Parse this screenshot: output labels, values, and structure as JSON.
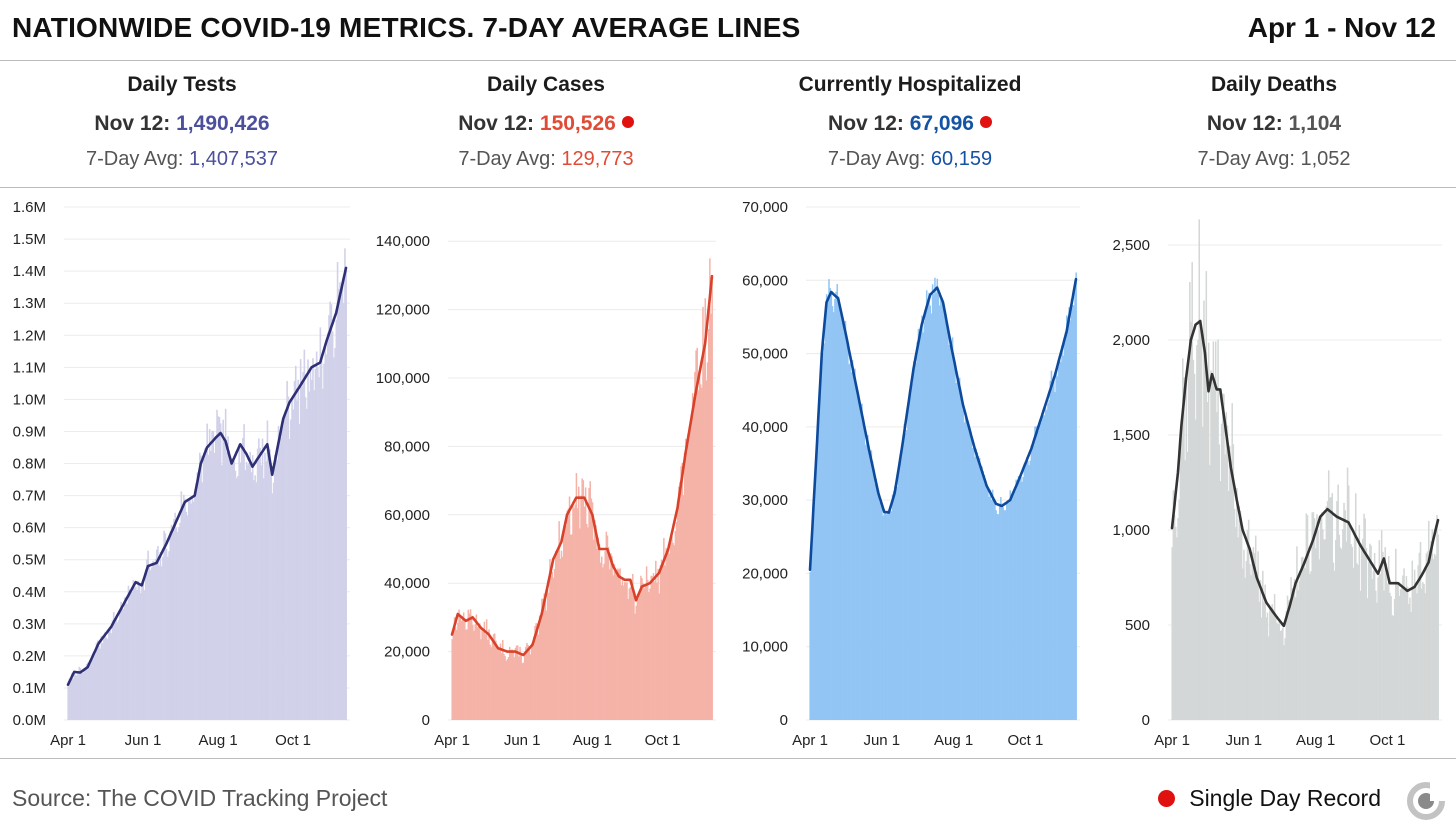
{
  "header": {
    "title": "NATIONWIDE COVID-19 METRICS. 7-DAY AVERAGE LINES",
    "date_range": "Apr 1 - Nov 12"
  },
  "colors": {
    "tests": "#2e2f74",
    "cases": "#d8412a",
    "hosp": "#0d4a9c",
    "deaths": "#333333",
    "record": "#e0110f"
  },
  "stats": [
    {
      "name": "Daily Tests",
      "date": "Nov 12:",
      "latest": "1,490,426",
      "avg_label": "7-Day Avg:",
      "avg": "1,407,537",
      "value_color": "#4b4f9c",
      "record": false
    },
    {
      "name": "Daily Cases",
      "date": "Nov 12:",
      "latest": "150,526",
      "avg_label": "7-Day Avg:",
      "avg": "129,773",
      "value_color": "#e04b36",
      "record": true
    },
    {
      "name": "Currently Hospitalized",
      "date": "Nov 12:",
      "latest": "67,096",
      "avg_label": "7-Day Avg:",
      "avg": "60,159",
      "value_color": "#1452a4",
      "record": true
    },
    {
      "name": "Daily Deaths",
      "date": "Nov 12:",
      "latest": "1,104",
      "avg_label": "7-Day Avg:",
      "avg": "1,052",
      "value_color": "#555555",
      "record": false
    }
  ],
  "chart_data": [
    {
      "type": "bar",
      "title": "Daily Tests",
      "x_start": "Apr 1",
      "x_end": "Nov 12",
      "days": 226,
      "xticks": [
        {
          "day": 0,
          "label": "Apr 1"
        },
        {
          "day": 61,
          "label": "Jun 1"
        },
        {
          "day": 122,
          "label": "Aug 1"
        },
        {
          "day": 183,
          "label": "Oct 1"
        }
      ],
      "ylim": [
        0,
        1600000
      ],
      "yticks": [
        {
          "v": 0,
          "label": "0.0M"
        },
        {
          "v": 100000,
          "label": "0.1M"
        },
        {
          "v": 200000,
          "label": "0.2M"
        },
        {
          "v": 300000,
          "label": "0.3M"
        },
        {
          "v": 400000,
          "label": "0.4M"
        },
        {
          "v": 500000,
          "label": "0.5M"
        },
        {
          "v": 600000,
          "label": "0.6M"
        },
        {
          "v": 700000,
          "label": "0.7M"
        },
        {
          "v": 800000,
          "label": "0.8M"
        },
        {
          "v": 900000,
          "label": "0.9M"
        },
        {
          "v": 1000000,
          "label": "1.0M"
        },
        {
          "v": 1100000,
          "label": "1.1M"
        },
        {
          "v": 1200000,
          "label": "1.2M"
        },
        {
          "v": 1300000,
          "label": "1.3M"
        },
        {
          "v": 1400000,
          "label": "1.4M"
        },
        {
          "v": 1500000,
          "label": "1.5M"
        },
        {
          "v": 1600000,
          "label": "1.6M"
        }
      ],
      "avg_points": [
        [
          0,
          110000
        ],
        [
          5,
          150000
        ],
        [
          10,
          148000
        ],
        [
          16,
          165000
        ],
        [
          25,
          240000
        ],
        [
          35,
          290000
        ],
        [
          45,
          360000
        ],
        [
          55,
          430000
        ],
        [
          60,
          420000
        ],
        [
          65,
          480000
        ],
        [
          72,
          490000
        ],
        [
          80,
          550000
        ],
        [
          95,
          680000
        ],
        [
          103,
          700000
        ],
        [
          108,
          800000
        ],
        [
          113,
          850000
        ],
        [
          120,
          880000
        ],
        [
          124,
          895000
        ],
        [
          128,
          870000
        ],
        [
          133,
          800000
        ],
        [
          140,
          860000
        ],
        [
          145,
          830000
        ],
        [
          150,
          790000
        ],
        [
          155,
          820000
        ],
        [
          162,
          860000
        ],
        [
          166,
          765000
        ],
        [
          175,
          940000
        ],
        [
          180,
          990000
        ],
        [
          190,
          1050000
        ],
        [
          198,
          1100000
        ],
        [
          205,
          1115000
        ],
        [
          210,
          1180000
        ],
        [
          218,
          1270000
        ],
        [
          226,
          1410000
        ]
      ],
      "noise_seed": 7,
      "noise_amp": 0.1,
      "bar_color": "#d1d1ea",
      "line_color": "#2e2f74"
    },
    {
      "type": "bar",
      "title": "Daily Cases",
      "x_start": "Apr 1",
      "x_end": "Nov 12",
      "days": 226,
      "xticks": [
        {
          "day": 0,
          "label": "Apr 1"
        },
        {
          "day": 61,
          "label": "Jun 1"
        },
        {
          "day": 122,
          "label": "Aug 1"
        },
        {
          "day": 183,
          "label": "Oct 1"
        }
      ],
      "ylim": [
        0,
        150000
      ],
      "yticks": [
        {
          "v": 0,
          "label": "0"
        },
        {
          "v": 20000,
          "label": "20,000"
        },
        {
          "v": 40000,
          "label": "40,000"
        },
        {
          "v": 60000,
          "label": "60,000"
        },
        {
          "v": 80000,
          "label": "80,000"
        },
        {
          "v": 100000,
          "label": "100,000"
        },
        {
          "v": 120000,
          "label": "120,000"
        },
        {
          "v": 140000,
          "label": "140,000"
        }
      ],
      "avg_points": [
        [
          0,
          25000
        ],
        [
          5,
          31000
        ],
        [
          12,
          29000
        ],
        [
          18,
          30000
        ],
        [
          25,
          27000
        ],
        [
          32,
          25000
        ],
        [
          40,
          21000
        ],
        [
          48,
          20000
        ],
        [
          55,
          20000
        ],
        [
          62,
          19000
        ],
        [
          70,
          22000
        ],
        [
          78,
          31000
        ],
        [
          88,
          47000
        ],
        [
          95,
          52000
        ],
        [
          100,
          60000
        ],
        [
          108,
          65000
        ],
        [
          115,
          65000
        ],
        [
          122,
          60000
        ],
        [
          128,
          50000
        ],
        [
          135,
          50000
        ],
        [
          140,
          45000
        ],
        [
          145,
          42000
        ],
        [
          150,
          41000
        ],
        [
          155,
          41000
        ],
        [
          160,
          35000
        ],
        [
          165,
          39000
        ],
        [
          172,
          40000
        ],
        [
          180,
          43000
        ],
        [
          188,
          50000
        ],
        [
          196,
          62000
        ],
        [
          203,
          78000
        ],
        [
          212,
          96000
        ],
        [
          220,
          110000
        ],
        [
          226,
          129773
        ]
      ],
      "noise_seed": 13,
      "noise_amp": 0.13,
      "bar_color": "#f5b3a8",
      "line_color": "#d8412a"
    },
    {
      "type": "bar",
      "title": "Currently Hospitalized",
      "x_start": "Apr 1",
      "x_end": "Nov 12",
      "days": 226,
      "xticks": [
        {
          "day": 0,
          "label": "Apr 1"
        },
        {
          "day": 61,
          "label": "Jun 1"
        },
        {
          "day": 122,
          "label": "Aug 1"
        },
        {
          "day": 183,
          "label": "Oct 1"
        }
      ],
      "ylim": [
        0,
        70000
      ],
      "yticks": [
        {
          "v": 0,
          "label": "0"
        },
        {
          "v": 10000,
          "label": "10,000"
        },
        {
          "v": 20000,
          "label": "20,000"
        },
        {
          "v": 30000,
          "label": "30,000"
        },
        {
          "v": 40000,
          "label": "40,000"
        },
        {
          "v": 50000,
          "label": "50,000"
        },
        {
          "v": 60000,
          "label": "60,000"
        },
        {
          "v": 70000,
          "label": "70,000"
        }
      ],
      "avg_points": [
        [
          0,
          20500
        ],
        [
          5,
          35000
        ],
        [
          10,
          50000
        ],
        [
          14,
          57000
        ],
        [
          18,
          58400
        ],
        [
          24,
          57500
        ],
        [
          30,
          53000
        ],
        [
          40,
          45000
        ],
        [
          50,
          37000
        ],
        [
          58,
          31000
        ],
        [
          63,
          28400
        ],
        [
          67,
          28300
        ],
        [
          72,
          31000
        ],
        [
          78,
          37000
        ],
        [
          88,
          48000
        ],
        [
          95,
          54000
        ],
        [
          102,
          58000
        ],
        [
          108,
          59000
        ],
        [
          113,
          57000
        ],
        [
          120,
          51000
        ],
        [
          130,
          43000
        ],
        [
          140,
          37000
        ],
        [
          150,
          32000
        ],
        [
          158,
          29500
        ],
        [
          163,
          29200
        ],
        [
          170,
          30000
        ],
        [
          178,
          33000
        ],
        [
          188,
          37000
        ],
        [
          198,
          42000
        ],
        [
          208,
          47000
        ],
        [
          218,
          53000
        ],
        [
          226,
          60159
        ]
      ],
      "noise_seed": 21,
      "noise_amp": 0.04,
      "bar_color": "#92c5f4",
      "line_color": "#0d4a9c"
    },
    {
      "type": "bar",
      "title": "Daily Deaths",
      "x_start": "Apr 1",
      "x_end": "Nov 12",
      "days": 226,
      "xticks": [
        {
          "day": 0,
          "label": "Apr 1"
        },
        {
          "day": 61,
          "label": "Jun 1"
        },
        {
          "day": 122,
          "label": "Aug 1"
        },
        {
          "day": 183,
          "label": "Oct 1"
        }
      ],
      "ylim": [
        0,
        2700
      ],
      "yticks": [
        {
          "v": 0,
          "label": "0"
        },
        {
          "v": 500,
          "label": "500"
        },
        {
          "v": 1000,
          "label": "1,000"
        },
        {
          "v": 1500,
          "label": "1,500"
        },
        {
          "v": 2000,
          "label": "2,000"
        },
        {
          "v": 2500,
          "label": "2,500"
        }
      ],
      "avg_points": [
        [
          0,
          1010
        ],
        [
          5,
          1300
        ],
        [
          8,
          1550
        ],
        [
          12,
          1800
        ],
        [
          16,
          2000
        ],
        [
          20,
          2080
        ],
        [
          24,
          2100
        ],
        [
          28,
          1930
        ],
        [
          31,
          1730
        ],
        [
          34,
          1820
        ],
        [
          38,
          1740
        ],
        [
          41,
          1740
        ],
        [
          45,
          1560
        ],
        [
          50,
          1330
        ],
        [
          55,
          1160
        ],
        [
          60,
          1000
        ],
        [
          66,
          900
        ],
        [
          72,
          750
        ],
        [
          80,
          620
        ],
        [
          88,
          550
        ],
        [
          95,
          495
        ],
        [
          100,
          600
        ],
        [
          105,
          720
        ],
        [
          112,
          820
        ],
        [
          120,
          950
        ],
        [
          126,
          1070
        ],
        [
          132,
          1110
        ],
        [
          140,
          1070
        ],
        [
          150,
          1040
        ],
        [
          160,
          920
        ],
        [
          170,
          820
        ],
        [
          175,
          770
        ],
        [
          180,
          850
        ],
        [
          185,
          720
        ],
        [
          192,
          720
        ],
        [
          200,
          680
        ],
        [
          206,
          700
        ],
        [
          212,
          760
        ],
        [
          218,
          830
        ],
        [
          222,
          950
        ],
        [
          226,
          1052
        ]
      ],
      "noise_seed": 37,
      "noise_amp": 0.25,
      "bar_color": "#d4d7d7",
      "line_color": "#333333"
    }
  ],
  "footer": {
    "source": "Source: The COVID Tracking Project",
    "legend_label": "Single Day Record"
  }
}
